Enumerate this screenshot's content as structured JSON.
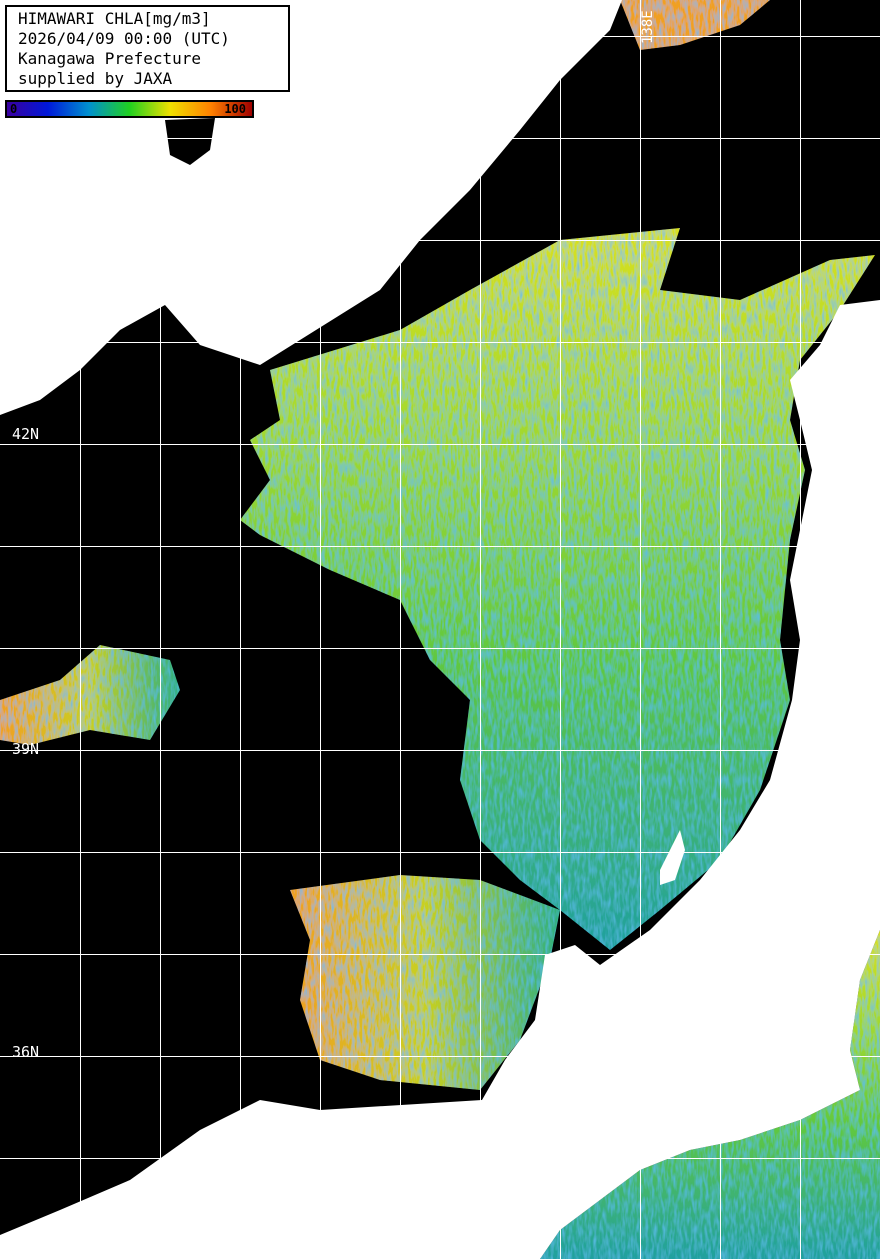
{
  "info": {
    "lines": [
      "HIMAWARI CHLA[mg/m3]",
      "2026/04/09 00:00 (UTC)",
      "Kanagawa Prefecture",
      "supplied by JAXA"
    ]
  },
  "colorbar": {
    "min_label": "0",
    "max_label": "100",
    "colors": [
      "#3a00a0",
      "#0018d8",
      "#0090d0",
      "#20d020",
      "#f0e000",
      "#ff8000",
      "#a00000"
    ]
  },
  "grid": {
    "lat_labels": [
      "42N",
      "39N",
      "36N"
    ],
    "lon_labels": [
      "138E"
    ],
    "line_color": "#ffffff"
  },
  "colors": {
    "land": "#ffffff",
    "no_data": "#000000"
  }
}
